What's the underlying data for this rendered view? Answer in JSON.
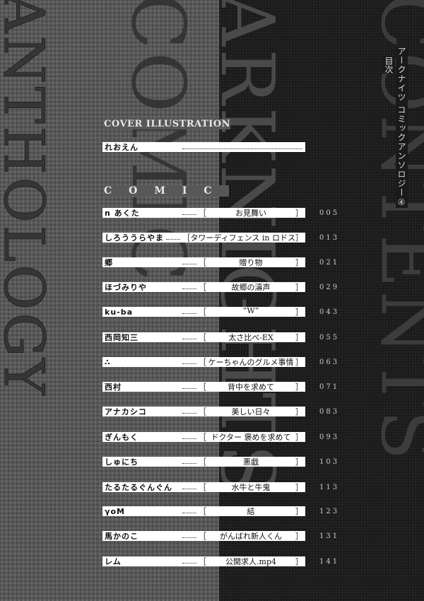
{
  "background_words": {
    "left": "ANTHOLOGY",
    "center": "COMIC",
    "middle": "ARKNIGHTS",
    "right": "CONTENTS"
  },
  "header": {
    "title": "アークナイツ コミックアンソロジー④",
    "subtitle": "目次"
  },
  "cover": {
    "heading": "COVER ILLUSTRATION",
    "author": "れおえん"
  },
  "comic": {
    "heading": "COMIC",
    "entries": [
      {
        "author": "n あくた",
        "title": "お見舞い",
        "page": "005"
      },
      {
        "author": "しろううらやま",
        "title": "タワーディフェンス in ロドス",
        "page": "013"
      },
      {
        "author": "郷",
        "title": "贈り物",
        "page": "021"
      },
      {
        "author": "ほづみりや",
        "title": "故郷の濤声",
        "page": "029"
      },
      {
        "author": "ku-ba",
        "title": "“W”",
        "page": "043"
      },
      {
        "author": "西岡知三",
        "title": "太さ比べ-EX",
        "page": "055"
      },
      {
        "author": "∴",
        "title": "ケーちゃんのグルメ事情",
        "page": "063"
      },
      {
        "author": "西村",
        "title": "背中を求めて",
        "page": "071"
      },
      {
        "author": "アナカシコ",
        "title": "美しい日々",
        "page": "083"
      },
      {
        "author": "ぎんもく",
        "title": "ドクター 褒めを求めて",
        "page": "093"
      },
      {
        "author": "しゅにち",
        "title": "悪戯",
        "page": "103"
      },
      {
        "author": "たるたるぐんぐん",
        "title": "水牛と牛鬼",
        "page": "113"
      },
      {
        "author": "γoM",
        "title": "結",
        "page": "123"
      },
      {
        "author": "馬かのこ",
        "title": "がんばれ新人くん",
        "page": "131"
      },
      {
        "author": "レム",
        "title": "公開求人.mp4",
        "page": "141"
      }
    ]
  }
}
